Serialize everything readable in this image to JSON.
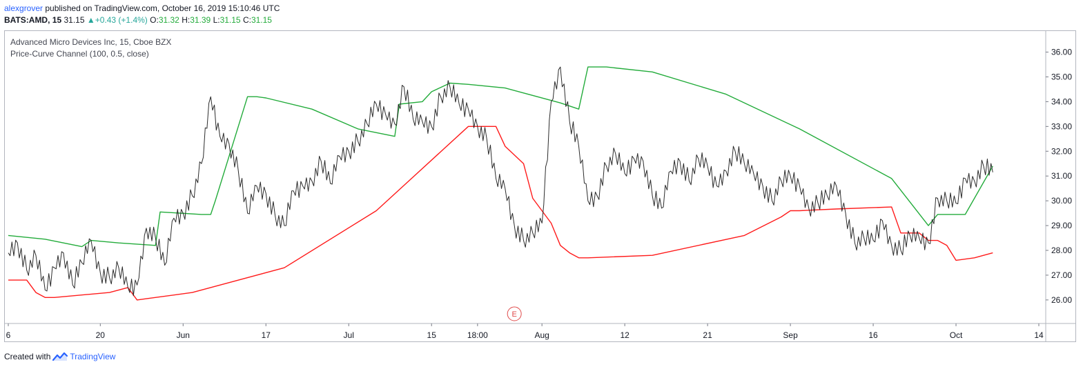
{
  "header": {
    "author": "alexgrover",
    "published_text": " published on TradingView.com, October 16, 2019 15:10:46 UTC",
    "symbol": "BATS:AMD, 15",
    "last": "31.15",
    "change": "+0.43 (+1.4%)",
    "open_label": "O:",
    "open": "31.32",
    "high_label": "H:",
    "high": "31.39",
    "low_label": "L:",
    "low": "31.15",
    "close_label": "C:",
    "close": "31.15"
  },
  "legend": {
    "title": "Advanced Micro Devices Inc, 15, Cboe BZX",
    "indicator": "Price-Curve Channel (100, 0.5, close)"
  },
  "footer": {
    "created_with": "Created with",
    "brand": "TradingView"
  },
  "colors": {
    "upper_band": "#22ab3a",
    "lower_band": "#ff1a1a",
    "price": "#2a2a2a",
    "earnings": "#e04a4a",
    "up_arrow": "#26a69a"
  },
  "icons": [
    "up-arrow-icon",
    "tradingview-logo-icon",
    "earnings-marker-icon"
  ],
  "chart_data": {
    "type": "line",
    "title": "Advanced Micro Devices Inc, 15, Cboe BZX",
    "x_tick_labels": [
      "6",
      "20",
      "Jun",
      "17",
      "Jul",
      "15",
      "18:00",
      "Aug",
      "12",
      "21",
      "Sep",
      "16",
      "Oct",
      "14"
    ],
    "x_tick_index": [
      0,
      10,
      19,
      28,
      37,
      46,
      51,
      58,
      67,
      76,
      85,
      94,
      103,
      112
    ],
    "y_tick_values": [
      26,
      27,
      28,
      29,
      30,
      31,
      32,
      33,
      34,
      35,
      36
    ],
    "y_tick_labels": [
      "26.00",
      "27.00",
      "28.00",
      "29.00",
      "30.00",
      "31.00",
      "32.00",
      "33.00",
      "34.00",
      "35.00",
      "36.00"
    ],
    "ylim": [
      25.05,
      36.85
    ],
    "xlim": [
      0,
      112
    ],
    "last_price": 31.15,
    "earnings_marker": {
      "x": 55,
      "label": "E"
    },
    "series": [
      {
        "name": "Price-Curve Channel upper",
        "x": [
          0,
          4,
          8,
          9,
          12,
          16,
          16.5,
          21,
          22,
          22.5,
          26,
          27,
          28,
          33,
          38,
          42,
          42.5,
          45,
          46,
          48,
          50,
          54,
          56,
          60,
          62,
          63,
          65,
          70,
          78,
          86,
          96,
          100,
          101,
          103,
          104,
          107
        ],
        "y": [
          28.6,
          28.45,
          28.15,
          28.4,
          28.3,
          28.2,
          29.55,
          29.45,
          29.45,
          30.0,
          34.2,
          34.2,
          34.15,
          33.7,
          32.9,
          32.6,
          33.9,
          34.0,
          34.4,
          34.75,
          34.7,
          34.55,
          34.35,
          33.95,
          33.7,
          35.4,
          35.4,
          35.2,
          34.3,
          32.9,
          30.9,
          29.0,
          29.45,
          29.45,
          29.45,
          31.4
        ]
      },
      {
        "name": "Price-Curve Channel lower",
        "x": [
          0,
          2,
          3,
          4,
          5,
          11,
          13,
          14,
          15,
          20,
          30,
          40,
          50,
          53,
          54,
          56,
          57,
          59,
          60,
          61,
          62,
          63,
          70,
          80,
          84,
          85,
          86,
          87,
          90,
          96,
          97,
          99,
          100,
          101,
          102,
          103,
          105,
          107
        ],
        "y": [
          26.8,
          26.8,
          26.3,
          26.1,
          26.1,
          26.3,
          26.5,
          26.0,
          26.05,
          26.3,
          27.3,
          29.6,
          33.0,
          33.0,
          32.2,
          31.5,
          30.1,
          29.1,
          28.2,
          27.9,
          27.7,
          27.7,
          27.8,
          28.6,
          29.35,
          29.6,
          29.6,
          29.62,
          29.67,
          29.75,
          28.7,
          28.7,
          28.4,
          28.4,
          28.2,
          27.6,
          27.7,
          27.9
        ]
      },
      {
        "name": "AMD close",
        "x": [
          0,
          1,
          2,
          3,
          4,
          5,
          6,
          7,
          8,
          9,
          10,
          11,
          12,
          13,
          14,
          15,
          16,
          17,
          18,
          19,
          20,
          21,
          22,
          23,
          24,
          25,
          26,
          27,
          28,
          29,
          30,
          31,
          32,
          33,
          34,
          35,
          36,
          37,
          38,
          39,
          40,
          41,
          42,
          43,
          44,
          45,
          46,
          47,
          48,
          49,
          50,
          51,
          52,
          53,
          54,
          55,
          56,
          57,
          58,
          59,
          60,
          61,
          62,
          63,
          64,
          65,
          66,
          67,
          68,
          69,
          70,
          71,
          72,
          73,
          74,
          75,
          76,
          77,
          78,
          79,
          80,
          81,
          82,
          83,
          84,
          85,
          86,
          87,
          88,
          89,
          90,
          91,
          92,
          93,
          94,
          95,
          96,
          97,
          98,
          99,
          100,
          101,
          102,
          103,
          104,
          105,
          106,
          107
        ],
        "y": [
          27.9,
          28.3,
          27.2,
          27.8,
          26.4,
          27.3,
          27.9,
          26.6,
          27.5,
          28.4,
          27.1,
          26.9,
          27.3,
          26.5,
          26.6,
          28.9,
          28.5,
          27.4,
          29.3,
          29.5,
          30.2,
          31.5,
          34.2,
          32.6,
          32.3,
          31.2,
          29.5,
          30.6,
          30.3,
          29.4,
          29.0,
          30.4,
          30.6,
          30.8,
          31.6,
          30.7,
          31.8,
          32.0,
          32.4,
          33.1,
          33.9,
          33.5,
          33.1,
          34.6,
          33.3,
          33.2,
          33.0,
          34.2,
          34.6,
          33.9,
          33.7,
          33.0,
          32.5,
          30.9,
          30.5,
          29.0,
          28.4,
          28.7,
          29.1,
          34.0,
          35.4,
          33.2,
          32.2,
          30.0,
          30.2,
          31.4,
          31.9,
          31.1,
          31.7,
          31.6,
          30.2,
          29.7,
          31.2,
          31.6,
          30.8,
          31.7,
          31.4,
          30.6,
          31.2,
          32.0,
          31.5,
          31.1,
          30.6,
          30.0,
          30.8,
          31.0,
          30.6,
          29.7,
          29.9,
          30.2,
          30.6,
          29.5,
          28.3,
          28.5,
          28.4,
          29.2,
          28.2,
          28.0,
          28.6,
          28.5,
          28.3,
          30.1,
          30.0,
          29.9,
          30.9,
          30.8,
          31.4,
          31.15
        ]
      }
    ]
  }
}
